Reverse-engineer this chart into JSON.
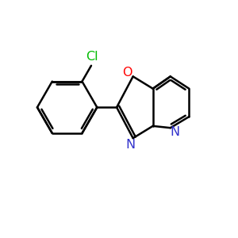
{
  "background_color": "#ffffff",
  "bond_color": "#000000",
  "bond_width": 1.8,
  "atom_colors": {
    "Cl": "#00bb00",
    "O": "#ff0000",
    "N": "#3333cc"
  },
  "figsize": [
    3.0,
    3.0
  ],
  "dpi": 100
}
